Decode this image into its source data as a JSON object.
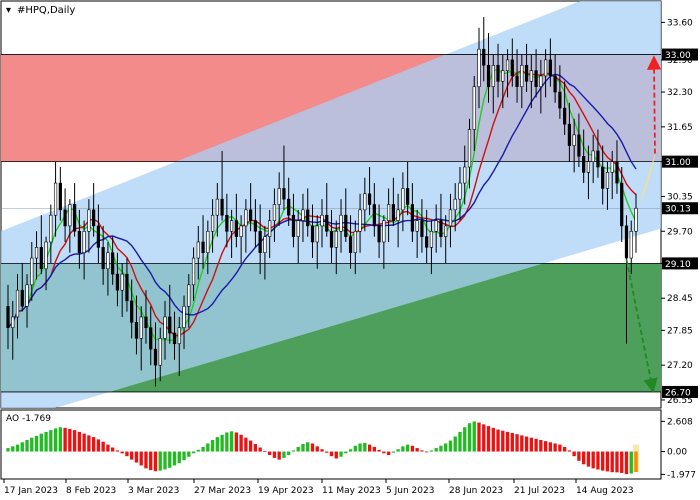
{
  "chart_data": {
    "type": "candlestick",
    "title": "#HPQ,Daily",
    "indicator_label": "AO -1.769",
    "x_labels": [
      "17 Jan 2023",
      "8 Feb 2023",
      "3 Mar 2023",
      "27 Mar 2023",
      "19 Apr 2023",
      "11 May 2023",
      "5 Jun 2023",
      "28 Jun 2023",
      "21 Jul 2023",
      "14 Aug 2023"
    ],
    "price_ticks": [
      "33.60",
      "32.90",
      "32.30",
      "31.65",
      "31.00",
      "30.35",
      "29.70",
      "29.10",
      "28.45",
      "27.85",
      "27.20",
      "26.55"
    ],
    "price_tags": [
      {
        "text": "33.00",
        "value": 33.0,
        "color": "#000000"
      },
      {
        "text": "31.00",
        "value": 31.0,
        "color": "#000000"
      },
      {
        "text": "30.13",
        "value": 30.13,
        "color": "#000000"
      },
      {
        "text": "29.10",
        "value": 29.1,
        "color": "#000000"
      },
      {
        "text": "26.70",
        "value": 26.7,
        "color": "#000000"
      }
    ],
    "price_range": [
      26.4,
      34.0
    ],
    "levels": {
      "resistance": 33.0,
      "middle": 31.0,
      "support": 29.1,
      "low_target": 26.7,
      "current": 30.13
    },
    "ao_ticks": [
      "2.608",
      "0.00",
      "-1.977"
    ],
    "ao_range": [
      -2.2,
      2.9
    ],
    "colors": {
      "channel": "#a9d0f5",
      "red_zone": "#f48b8b",
      "green_zone": "#4e9e5c",
      "ma_fast": "#22cc22",
      "ma_mid": "#cc1111",
      "ma_slow": "#1a1aaa",
      "ao_up": "#22bb22",
      "ao_down": "#ee1111",
      "arrow_up": "#ee2222",
      "arrow_down": "#228822"
    },
    "candles": [
      [
        28.3,
        28.7,
        27.5,
        27.9
      ],
      [
        27.9,
        28.4,
        27.3,
        28.1
      ],
      [
        28.1,
        28.9,
        27.7,
        28.6
      ],
      [
        28.6,
        29.1,
        28.2,
        28.3
      ],
      [
        28.3,
        28.9,
        27.9,
        28.7
      ],
      [
        28.7,
        29.5,
        28.4,
        29.2
      ],
      [
        29.2,
        29.7,
        28.8,
        29.4
      ],
      [
        29.4,
        30.0,
        28.9,
        29.0
      ],
      [
        29.0,
        29.6,
        28.6,
        29.5
      ],
      [
        29.5,
        30.2,
        29.1,
        30.0
      ],
      [
        30.0,
        31.0,
        29.6,
        30.6
      ],
      [
        30.6,
        30.9,
        29.9,
        30.1
      ],
      [
        30.1,
        30.5,
        29.5,
        29.8
      ],
      [
        29.8,
        30.3,
        29.3,
        30.2
      ],
      [
        30.2,
        30.6,
        29.6,
        29.7
      ],
      [
        29.7,
        30.1,
        29.0,
        29.3
      ],
      [
        29.3,
        29.9,
        28.8,
        29.7
      ],
      [
        29.7,
        30.3,
        29.3,
        30.1
      ],
      [
        30.1,
        30.6,
        29.6,
        29.8
      ],
      [
        29.8,
        30.2,
        29.1,
        29.4
      ],
      [
        29.4,
        29.8,
        28.7,
        29.0
      ],
      [
        29.0,
        29.5,
        28.5,
        29.3
      ],
      [
        29.3,
        29.6,
        28.7,
        28.9
      ],
      [
        28.9,
        29.3,
        28.3,
        28.6
      ],
      [
        28.6,
        29.1,
        28.1,
        28.9
      ],
      [
        28.9,
        29.2,
        28.2,
        28.4
      ],
      [
        28.4,
        28.8,
        27.7,
        28.0
      ],
      [
        28.0,
        28.5,
        27.4,
        27.7
      ],
      [
        27.7,
        28.3,
        27.1,
        28.1
      ],
      [
        28.1,
        28.6,
        27.6,
        27.9
      ],
      [
        27.9,
        28.3,
        27.2,
        27.5
      ],
      [
        27.5,
        28.0,
        26.8,
        27.2
      ],
      [
        27.2,
        27.9,
        26.9,
        27.7
      ],
      [
        27.7,
        28.4,
        27.3,
        28.1
      ],
      [
        28.1,
        28.7,
        27.6,
        27.8
      ],
      [
        27.8,
        28.2,
        27.3,
        27.6
      ],
      [
        27.6,
        28.1,
        27.0,
        27.9
      ],
      [
        27.9,
        28.5,
        27.5,
        28.3
      ],
      [
        28.3,
        28.9,
        27.9,
        28.7
      ],
      [
        28.7,
        29.4,
        28.4,
        29.2
      ],
      [
        29.2,
        29.8,
        28.8,
        29.5
      ],
      [
        29.5,
        30.0,
        29.0,
        29.3
      ],
      [
        29.3,
        29.9,
        28.9,
        29.7
      ],
      [
        29.7,
        30.3,
        29.3,
        30.0
      ],
      [
        30.0,
        30.6,
        29.6,
        30.3
      ],
      [
        30.3,
        31.2,
        29.9,
        30.0
      ],
      [
        30.0,
        30.4,
        29.4,
        29.7
      ],
      [
        29.7,
        30.1,
        29.2,
        29.9
      ],
      [
        29.9,
        30.4,
        29.4,
        29.6
      ],
      [
        29.6,
        30.0,
        29.1,
        29.8
      ],
      [
        29.8,
        30.3,
        29.3,
        30.1
      ],
      [
        30.1,
        30.6,
        29.7,
        29.9
      ],
      [
        29.9,
        30.3,
        29.4,
        29.7
      ],
      [
        29.7,
        30.2,
        28.9,
        29.3
      ],
      [
        29.3,
        29.8,
        28.8,
        29.6
      ],
      [
        29.6,
        30.1,
        29.2,
        29.9
      ],
      [
        29.9,
        30.5,
        29.5,
        30.2
      ],
      [
        30.2,
        30.8,
        29.8,
        30.5
      ],
      [
        30.5,
        31.3,
        30.1,
        30.3
      ],
      [
        30.3,
        30.7,
        29.8,
        30.0
      ],
      [
        30.0,
        30.4,
        29.4,
        29.6
      ],
      [
        29.6,
        30.1,
        29.1,
        29.9
      ],
      [
        29.9,
        30.4,
        29.5,
        30.1
      ],
      [
        30.1,
        30.5,
        29.6,
        29.8
      ],
      [
        29.8,
        30.2,
        29.2,
        29.5
      ],
      [
        29.5,
        30.0,
        29.0,
        29.8
      ],
      [
        29.8,
        30.3,
        29.4,
        30.0
      ],
      [
        30.0,
        30.6,
        29.6,
        29.7
      ],
      [
        29.7,
        30.1,
        29.1,
        29.4
      ],
      [
        29.4,
        29.9,
        28.9,
        29.7
      ],
      [
        29.7,
        30.3,
        29.3,
        30.0
      ],
      [
        30.0,
        30.5,
        29.5,
        29.6
      ],
      [
        29.6,
        30.0,
        29.0,
        29.3
      ],
      [
        29.3,
        29.9,
        28.9,
        29.7
      ],
      [
        29.7,
        30.4,
        29.3,
        30.1
      ],
      [
        30.1,
        30.7,
        29.7,
        30.4
      ],
      [
        30.4,
        30.9,
        30.0,
        30.2
      ],
      [
        30.2,
        30.6,
        29.6,
        29.8
      ],
      [
        29.8,
        30.2,
        29.2,
        29.5
      ],
      [
        29.5,
        30.0,
        29.0,
        29.9
      ],
      [
        29.9,
        30.5,
        29.5,
        30.2
      ],
      [
        30.2,
        30.7,
        29.8,
        29.9
      ],
      [
        29.9,
        30.4,
        29.4,
        30.1
      ],
      [
        30.1,
        30.8,
        29.7,
        30.5
      ],
      [
        30.5,
        31.0,
        30.0,
        30.2
      ],
      [
        30.2,
        30.6,
        29.5,
        29.7
      ],
      [
        29.7,
        30.1,
        29.2,
        29.9
      ],
      [
        29.9,
        30.3,
        29.3,
        29.6
      ],
      [
        29.6,
        30.1,
        29.1,
        29.4
      ],
      [
        29.4,
        29.9,
        28.9,
        29.7
      ],
      [
        29.7,
        30.2,
        29.3,
        29.9
      ],
      [
        29.9,
        30.4,
        29.4,
        29.6
      ],
      [
        29.6,
        30.0,
        29.1,
        29.8
      ],
      [
        29.8,
        30.4,
        29.4,
        30.1
      ],
      [
        30.1,
        30.6,
        29.7,
        30.3
      ],
      [
        30.3,
        30.9,
        29.9,
        30.6
      ],
      [
        30.6,
        31.3,
        30.2,
        30.9
      ],
      [
        30.9,
        31.8,
        30.5,
        31.6
      ],
      [
        31.6,
        32.6,
        31.2,
        32.4
      ],
      [
        32.4,
        33.5,
        32.0,
        33.1
      ],
      [
        33.1,
        33.7,
        32.5,
        32.8
      ],
      [
        32.8,
        33.4,
        32.1,
        32.4
      ],
      [
        32.4,
        33.0,
        31.9,
        32.8
      ],
      [
        32.8,
        33.2,
        32.2,
        32.5
      ],
      [
        32.5,
        33.0,
        32.0,
        32.7
      ],
      [
        32.7,
        33.1,
        32.2,
        32.9
      ],
      [
        32.9,
        33.3,
        32.4,
        32.6
      ],
      [
        32.6,
        33.1,
        32.1,
        32.4
      ],
      [
        32.4,
        33.0,
        32.0,
        32.8
      ],
      [
        32.8,
        33.2,
        32.3,
        32.5
      ],
      [
        32.5,
        33.0,
        32.0,
        32.7
      ],
      [
        32.7,
        33.1,
        32.2,
        32.4
      ],
      [
        32.4,
        32.9,
        31.9,
        32.6
      ],
      [
        32.6,
        33.1,
        32.2,
        32.9
      ],
      [
        32.9,
        33.3,
        32.4,
        32.6
      ],
      [
        32.6,
        33.0,
        32.1,
        32.3
      ],
      [
        32.3,
        32.8,
        31.8,
        32.0
      ],
      [
        32.0,
        32.5,
        31.5,
        31.7
      ],
      [
        31.7,
        32.1,
        31.0,
        31.3
      ],
      [
        31.3,
        31.8,
        30.8,
        31.5
      ],
      [
        31.5,
        31.9,
        30.9,
        31.1
      ],
      [
        31.1,
        31.6,
        30.6,
        30.8
      ],
      [
        30.8,
        31.3,
        30.3,
        31.0
      ],
      [
        31.0,
        31.5,
        30.6,
        31.2
      ],
      [
        31.2,
        31.6,
        30.7,
        30.9
      ],
      [
        30.9,
        31.3,
        30.2,
        30.5
      ],
      [
        30.5,
        31.0,
        30.1,
        30.8
      ],
      [
        30.8,
        31.2,
        30.3,
        31.0
      ],
      [
        31.0,
        31.4,
        30.4,
        30.6
      ],
      [
        30.6,
        30.9,
        29.5,
        29.8
      ],
      [
        29.8,
        30.0,
        27.6,
        29.2
      ],
      [
        29.2,
        29.9,
        28.9,
        29.7
      ],
      [
        29.7,
        30.4,
        29.3,
        30.13
      ]
    ],
    "ao_values": [
      0.3,
      0.45,
      0.6,
      0.8,
      1.0,
      1.2,
      1.35,
      1.55,
      1.7,
      1.85,
      2.0,
      2.1,
      2.05,
      1.95,
      1.85,
      1.7,
      1.55,
      1.4,
      1.25,
      1.05,
      0.85,
      0.6,
      0.35,
      0.1,
      -0.15,
      -0.4,
      -0.7,
      -0.95,
      -1.2,
      -1.45,
      -1.6,
      -1.7,
      -1.65,
      -1.55,
      -1.4,
      -1.2,
      -1.0,
      -0.75,
      -0.45,
      -0.15,
      0.15,
      0.4,
      0.7,
      1.0,
      1.25,
      1.45,
      1.65,
      1.75,
      1.65,
      1.45,
      1.2,
      0.95,
      0.65,
      0.35,
      0.05,
      -0.3,
      -0.55,
      -0.7,
      -0.55,
      -0.3,
      0.1,
      0.4,
      0.65,
      0.8,
      0.7,
      0.45,
      0.2,
      -0.1,
      -0.4,
      -0.6,
      -0.45,
      -0.15,
      0.2,
      0.5,
      0.7,
      0.75,
      0.6,
      0.4,
      0.15,
      -0.15,
      -0.3,
      -0.1,
      0.2,
      0.45,
      0.6,
      0.5,
      0.3,
      0.1,
      -0.05,
      0.1,
      0.3,
      0.5,
      0.7,
      0.95,
      1.3,
      1.7,
      2.1,
      2.45,
      2.6,
      2.5,
      2.35,
      2.2,
      2.05,
      1.9,
      1.8,
      1.7,
      1.6,
      1.5,
      1.4,
      1.3,
      1.2,
      1.1,
      1.0,
      0.9,
      0.8,
      0.7,
      0.6,
      0.4,
      0.1,
      -0.4,
      -0.8,
      -1.1,
      -1.3,
      -1.45,
      -1.55,
      -1.65,
      -1.72,
      -1.78,
      -1.8,
      -1.85,
      -1.95,
      -1.9,
      -1.769
    ]
  }
}
